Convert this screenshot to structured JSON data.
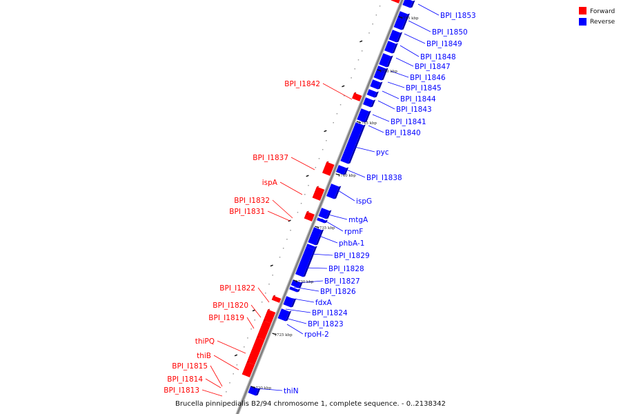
{
  "caption": "Brucella pinnipedialis B2/94 chromosome 1, complete sequence. - 0..2138342",
  "legend": [
    {
      "label": "Forward",
      "color": "#ff0000"
    },
    {
      "label": "Reverse",
      "color": "#0000ff"
    }
  ],
  "colors": {
    "forward": "#ff0000",
    "reverse": "#0000ff",
    "backbone": "#808080"
  },
  "ticks": [
    "1755 kbp",
    "1750 kbp",
    "1745 kbp",
    "1740 kbp",
    "1735 kbp",
    "1730 kbp",
    "1725 kbp",
    "1720 kbp"
  ],
  "forward_genes": [
    "BPI_I1842",
    "BPI_I1837",
    "ispA",
    "BPI_I1832",
    "BPI_I1831",
    "BPI_I1822",
    "BPI_I1820",
    "BPI_I1819",
    "thiPQ",
    "thiB",
    "BPI_I1815",
    "BPI_I1814",
    "BPI_I1813"
  ],
  "reverse_genes": [
    "BPI_I1853",
    "BPI_I1850",
    "BPI_I1849",
    "BPI_I1848",
    "BPI_I1847",
    "BPI_I1846",
    "BPI_I1845",
    "BPI_I1844",
    "BPI_I1843",
    "BPI_I1841",
    "BPI_I1840",
    "pyc",
    "BPI_I1838",
    "ispG",
    "mtgA",
    "rpmF",
    "phbA-1",
    "BPI_I1829",
    "BPI_I1828",
    "BPI_I1827",
    "BPI_I1826",
    "fdxA",
    "BPI_I1824",
    "BPI_I1823",
    "rpoH-2",
    "thiN"
  ]
}
